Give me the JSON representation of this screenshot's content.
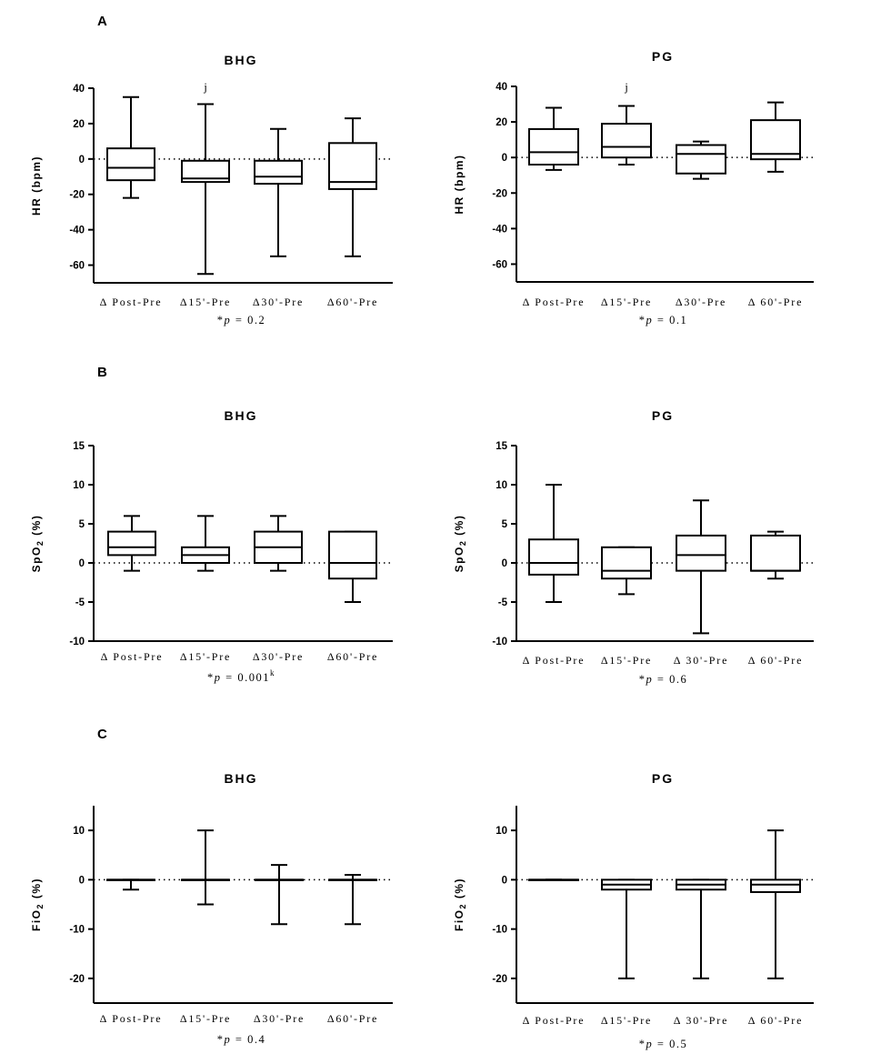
{
  "chart_data": [
    {
      "panel": "A",
      "title": "BHG",
      "type": "box",
      "ylabel": "HR (bpm)",
      "ylim": [
        -70,
        40
      ],
      "yticks": [
        40,
        20,
        0,
        -20,
        -40,
        -60
      ],
      "categories": [
        "Δ Post-Pre",
        "Δ15'-Pre",
        "Δ30'-Pre",
        "Δ60'-Pre"
      ],
      "boxes": [
        {
          "min": -22,
          "q1": -12,
          "median": -5,
          "q3": 6,
          "max": 35
        },
        {
          "min": -65,
          "q1": -13,
          "median": -11,
          "q3": -1,
          "max": 31
        },
        {
          "min": -55,
          "q1": -14,
          "median": -10,
          "q3": -1,
          "max": 17
        },
        {
          "min": -55,
          "q1": -17,
          "median": -13,
          "q3": 9,
          "max": 23
        }
      ],
      "annotations": [
        {
          "category": 1,
          "text": "j"
        }
      ],
      "pvalue": {
        "prefix": "*",
        "p": "p",
        "eq": "= 0.2",
        "sup": ""
      }
    },
    {
      "panel": "",
      "title": "PG",
      "type": "box",
      "ylabel": "HR (bpm)",
      "ylim": [
        -70,
        40
      ],
      "yticks": [
        40,
        20,
        0,
        -20,
        -40,
        -60
      ],
      "categories": [
        "Δ Post-Pre",
        "Δ15'-Pre",
        "Δ30'-Pre",
        "Δ 60'-Pre"
      ],
      "boxes": [
        {
          "min": -7,
          "q1": -4,
          "median": 3,
          "q3": 16,
          "max": 28
        },
        {
          "min": -4,
          "q1": 0,
          "median": 6,
          "q3": 19,
          "max": 29
        },
        {
          "min": -12,
          "q1": -9,
          "median": 2,
          "q3": 7,
          "max": 9
        },
        {
          "min": -8,
          "q1": -1,
          "median": 2,
          "q3": 21,
          "max": 31
        }
      ],
      "annotations": [
        {
          "category": 1,
          "text": "j"
        }
      ],
      "pvalue": {
        "prefix": "*",
        "p": "p",
        "eq": "= 0.1",
        "sup": ""
      }
    },
    {
      "panel": "B",
      "title": "BHG",
      "type": "box",
      "ylabel": "SpO2 (%)",
      "ylim": [
        -10,
        15
      ],
      "yticks": [
        15,
        10,
        5,
        0,
        -5,
        -10
      ],
      "categories": [
        "Δ Post-Pre",
        "Δ15'-Pre",
        "Δ30'-Pre",
        "Δ60'-Pre"
      ],
      "boxes": [
        {
          "min": -1,
          "q1": 1,
          "median": 2,
          "q3": 4,
          "max": 6
        },
        {
          "min": -1,
          "q1": 0,
          "median": 1,
          "q3": 2,
          "max": 6
        },
        {
          "min": -1,
          "q1": 0,
          "median": 2,
          "q3": 4,
          "max": 6
        },
        {
          "min": -5,
          "q1": -2,
          "median": 0,
          "q3": 4,
          "max": 4
        }
      ],
      "annotations": [],
      "pvalue": {
        "prefix": "*",
        "p": "p",
        "eq": "= 0.001",
        "sup": "k"
      }
    },
    {
      "panel": "",
      "title": "PG",
      "type": "box",
      "ylabel": "SpO2 (%)",
      "ylim": [
        -10,
        15
      ],
      "yticks": [
        15,
        10,
        5,
        0,
        -5,
        -10
      ],
      "categories": [
        "Δ Post-Pre",
        "Δ15'-Pre",
        "Δ 30'-Pre",
        "Δ 60'-Pre"
      ],
      "boxes": [
        {
          "min": -5,
          "q1": -1.5,
          "median": 0,
          "q3": 3,
          "max": 10
        },
        {
          "min": -4,
          "q1": -2,
          "median": -1,
          "q3": 2,
          "max": 2
        },
        {
          "min": -9,
          "q1": -1,
          "median": 1,
          "q3": 3.5,
          "max": 8
        },
        {
          "min": -2,
          "q1": -1,
          "median": -1,
          "q3": 3.5,
          "max": 4
        }
      ],
      "annotations": [],
      "pvalue": {
        "prefix": "*",
        "p": "p",
        "eq": "= 0.6",
        "sup": ""
      }
    },
    {
      "panel": "C",
      "title": "BHG",
      "type": "box",
      "ylabel": "FiO2 (%)",
      "ylim": [
        -25,
        15
      ],
      "yticks": [
        10,
        0,
        -10,
        -20
      ],
      "categories": [
        "Δ Post-Pre",
        "Δ15'-Pre",
        "Δ30'-Pre",
        "Δ60'-Pre"
      ],
      "boxes": [
        {
          "min": -2,
          "q1": 0,
          "median": 0,
          "q3": 0,
          "max": 0
        },
        {
          "min": -5,
          "q1": 0,
          "median": 0,
          "q3": 0,
          "max": 10
        },
        {
          "min": -9,
          "q1": 0,
          "median": 0,
          "q3": 0,
          "max": 3
        },
        {
          "min": -9,
          "q1": 0,
          "median": 0,
          "q3": 0,
          "max": 1
        }
      ],
      "annotations": [],
      "pvalue": {
        "prefix": "*",
        "p": "p",
        "eq": "= 0.4",
        "sup": ""
      }
    },
    {
      "panel": "",
      "title": "PG",
      "type": "box",
      "ylabel": "FiO2 (%)",
      "ylim": [
        -25,
        15
      ],
      "yticks": [
        10,
        0,
        -10,
        -20
      ],
      "categories": [
        "Δ Post-Pre",
        "Δ15'-Pre",
        "Δ 30'-Pre",
        "Δ 60'-Pre"
      ],
      "boxes": [
        {
          "min": 0,
          "q1": 0,
          "median": 0,
          "q3": 0,
          "max": 0
        },
        {
          "min": -20,
          "q1": -2,
          "median": -1,
          "q3": 0,
          "max": 0
        },
        {
          "min": -20,
          "q1": -2,
          "median": -1,
          "q3": 0,
          "max": 0
        },
        {
          "min": -20,
          "q1": -2.5,
          "median": -1,
          "q3": 0,
          "max": 10
        }
      ],
      "annotations": [],
      "pvalue": {
        "prefix": "*",
        "p": "p",
        "eq": "= 0.5",
        "sup": ""
      }
    }
  ]
}
